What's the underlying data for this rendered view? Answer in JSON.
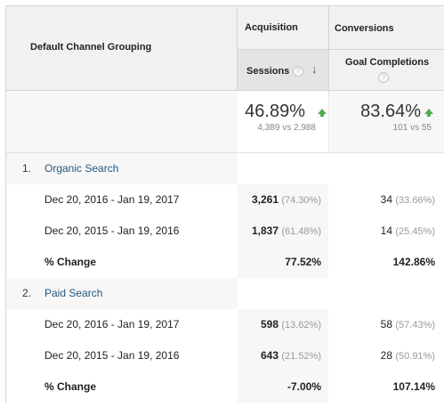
{
  "header": {
    "dimension_label": "Default Channel Grouping",
    "acquisition_label": "Acquisition",
    "conversions_label": "Conversions",
    "sessions_label": "Sessions",
    "goal_completions_label": "Goal Completions",
    "help_glyph": "?",
    "sort_glyph": "↓"
  },
  "totals": {
    "sessions_change": "46.89%",
    "sessions_compare": "4,389 vs 2,988",
    "goal_change": "83.64%",
    "goal_compare": "101 vs 55",
    "trend_color": "#4caf50"
  },
  "groups": [
    {
      "index": "1.",
      "name": "Organic Search",
      "rows": [
        {
          "date": "Dec 20, 2016 - Jan 19, 2017",
          "sessions": "3,261",
          "sessions_pct": "(74.30%)",
          "goals": "34",
          "goals_pct": "(33.66%)"
        },
        {
          "date": "Dec 20, 2015 - Jan 19, 2016",
          "sessions": "1,837",
          "sessions_pct": "(61.48%)",
          "goals": "14",
          "goals_pct": "(25.45%)"
        }
      ],
      "change_label": "% Change",
      "sessions_change": "77.52%",
      "goals_change": "142.86%"
    },
    {
      "index": "2.",
      "name": "Paid Search",
      "rows": [
        {
          "date": "Dec 20, 2016 - Jan 19, 2017",
          "sessions": "598",
          "sessions_pct": "(13.62%)",
          "goals": "58",
          "goals_pct": "(57.43%)"
        },
        {
          "date": "Dec 20, 2015 - Jan 19, 2016",
          "sessions": "643",
          "sessions_pct": "(21.52%)",
          "goals": "28",
          "goals_pct": "(50.91%)"
        }
      ],
      "change_label": "% Change",
      "sessions_change": "-7.00%",
      "goals_change": "107.14%"
    }
  ],
  "colors": {
    "link": "#23587e",
    "header_bg": "#f1f1f1",
    "sorted_header_bg": "#e4e4e4"
  }
}
